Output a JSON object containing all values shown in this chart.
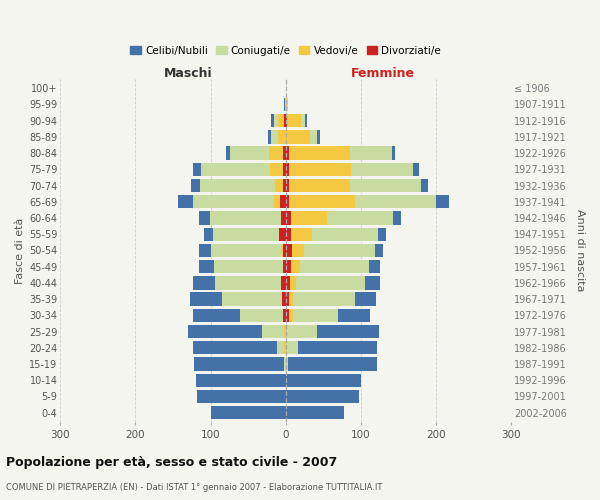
{
  "age_groups": [
    "0-4",
    "5-9",
    "10-14",
    "15-19",
    "20-24",
    "25-29",
    "30-34",
    "35-39",
    "40-44",
    "45-49",
    "50-54",
    "55-59",
    "60-64",
    "65-69",
    "70-74",
    "75-79",
    "80-84",
    "85-89",
    "90-94",
    "95-99",
    "100+"
  ],
  "birth_years": [
    "2002-2006",
    "1997-2001",
    "1992-1996",
    "1987-1991",
    "1982-1986",
    "1977-1981",
    "1972-1976",
    "1967-1971",
    "1962-1966",
    "1957-1961",
    "1952-1956",
    "1947-1951",
    "1942-1946",
    "1937-1941",
    "1932-1936",
    "1927-1931",
    "1922-1926",
    "1917-1921",
    "1912-1916",
    "1907-1911",
    "≤ 1906"
  ],
  "male_celibi": [
    100,
    118,
    120,
    120,
    112,
    98,
    62,
    42,
    30,
    20,
    16,
    12,
    14,
    20,
    12,
    10,
    5,
    4,
    3,
    1,
    0
  ],
  "male_coniugati": [
    0,
    0,
    0,
    2,
    10,
    30,
    58,
    80,
    88,
    92,
    95,
    88,
    95,
    108,
    100,
    92,
    52,
    10,
    6,
    1,
    0
  ],
  "male_vedovi": [
    0,
    0,
    0,
    0,
    2,
    2,
    0,
    0,
    0,
    0,
    2,
    0,
    0,
    8,
    10,
    18,
    18,
    10,
    8,
    0,
    0
  ],
  "male_divorziati": [
    0,
    0,
    0,
    0,
    0,
    0,
    3,
    5,
    6,
    3,
    3,
    9,
    6,
    7,
    4,
    3,
    4,
    0,
    2,
    0,
    0
  ],
  "female_nubili": [
    78,
    98,
    100,
    118,
    105,
    82,
    42,
    28,
    20,
    14,
    10,
    10,
    10,
    18,
    10,
    8,
    5,
    4,
    2,
    0,
    0
  ],
  "female_coniugate": [
    0,
    0,
    0,
    3,
    16,
    42,
    60,
    82,
    92,
    92,
    95,
    88,
    88,
    108,
    95,
    82,
    55,
    10,
    6,
    1,
    0
  ],
  "female_vedove": [
    0,
    0,
    0,
    0,
    0,
    0,
    5,
    5,
    8,
    12,
    15,
    28,
    48,
    88,
    80,
    82,
    82,
    32,
    18,
    2,
    0
  ],
  "female_divorziate": [
    0,
    0,
    0,
    0,
    0,
    0,
    5,
    5,
    6,
    7,
    9,
    7,
    7,
    4,
    5,
    5,
    4,
    0,
    2,
    0,
    0
  ],
  "color_celibi": "#4472a8",
  "color_coniugati": "#c8dba0",
  "color_vedovi": "#f5c842",
  "color_divorziati": "#cc2222",
  "xlim": 300,
  "xticks": [
    -300,
    -200,
    -100,
    0,
    100,
    200,
    300
  ],
  "xtick_labels": [
    "300",
    "200",
    "100",
    "0",
    "100",
    "200",
    "300"
  ],
  "title": "Popolazione per età, sesso e stato civile - 2007",
  "subtitle": "COMUNE DI PIETRAPERZIA (EN) - Dati ISTAT 1° gennaio 2007 - Elaborazione TUTTITALIA.IT",
  "ylabel_left": "Fasce di età",
  "ylabel_right": "Anni di nascita",
  "label_maschi": "Maschi",
  "label_femmine": "Femmine",
  "legend_labels": [
    "Celibi/Nubili",
    "Coniugati/e",
    "Vedovi/e",
    "Divorziati/e"
  ],
  "bg_color": "#f5f5f0",
  "bar_height": 0.82
}
